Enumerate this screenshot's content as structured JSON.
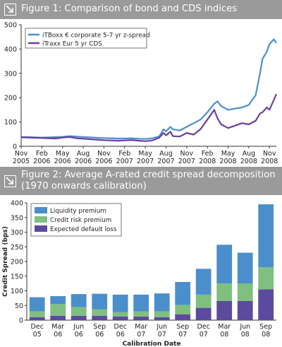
{
  "figure1": {
    "title": "Figure 1: Comparison of bond and CDS indices",
    "chart_data": {
      "type": "line",
      "title": "Figure 1: Comparison of bond and CDS indices",
      "xlabel": "",
      "ylabel": "",
      "ylim": [
        0,
        500
      ],
      "y_ticks": [
        "0",
        "100",
        "200",
        "300",
        "400",
        "500"
      ],
      "x_ticks": [
        {
          "line1": "Nov",
          "line2": "2005"
        },
        {
          "line1": "Feb",
          "line2": "2006"
        },
        {
          "line1": "May",
          "line2": "2006"
        },
        {
          "line1": "Aug",
          "line2": "2006"
        },
        {
          "line1": "Nov",
          "line2": "2006"
        },
        {
          "line1": "Feb",
          "line2": "2007"
        },
        {
          "line1": "May",
          "line2": "2007"
        },
        {
          "line1": "Aug",
          "line2": "2007"
        },
        {
          "line1": "Nov",
          "line2": "2007"
        },
        {
          "line1": "Feb",
          "line2": "2008"
        },
        {
          "line1": "May",
          "line2": "2008"
        },
        {
          "line1": "Aug",
          "line2": "2008"
        },
        {
          "line1": "Nov",
          "line2": "2008"
        }
      ],
      "legend_position": "top-left",
      "series": [
        {
          "name": "iTBoxx € corporate 5-7 yr z-spread",
          "color": "#4b8fc9",
          "points": [
            [
              "2005-11",
              38
            ],
            [
              "2005-12",
              38
            ],
            [
              "2006-01",
              37
            ],
            [
              "2006-02",
              36
            ],
            [
              "2006-03",
              37
            ],
            [
              "2006-04",
              38
            ],
            [
              "2006-05",
              39
            ],
            [
              "2006-06",
              42
            ],
            [
              "2006-07",
              40
            ],
            [
              "2006-08",
              38
            ],
            [
              "2006-09",
              37
            ],
            [
              "2006-10",
              35
            ],
            [
              "2006-11",
              34
            ],
            [
              "2006-12",
              33
            ],
            [
              "2007-01",
              32
            ],
            [
              "2007-02",
              32
            ],
            [
              "2007-03",
              33
            ],
            [
              "2007-04",
              31
            ],
            [
              "2007-05",
              30
            ],
            [
              "2007-06",
              33
            ],
            [
              "2007-07",
              40
            ],
            [
              "2007-07-20",
              70
            ],
            [
              "2007-08",
              62
            ],
            [
              "2007-08-20",
              80
            ],
            [
              "2007-09",
              70
            ],
            [
              "2007-10",
              65
            ],
            [
              "2007-11",
              80
            ],
            [
              "2007-12",
              95
            ],
            [
              "2008-01",
              110
            ],
            [
              "2008-02",
              140
            ],
            [
              "2008-03",
              175
            ],
            [
              "2008-03-15",
              185
            ],
            [
              "2008-04",
              165
            ],
            [
              "2008-05",
              150
            ],
            [
              "2008-06",
              155
            ],
            [
              "2008-07",
              160
            ],
            [
              "2008-08",
              170
            ],
            [
              "2008-09",
              210
            ],
            [
              "2008-09-20",
              300
            ],
            [
              "2008-10",
              360
            ],
            [
              "2008-10-20",
              390
            ],
            [
              "2008-11",
              420
            ],
            [
              "2008-11-20",
              440
            ],
            [
              "2008-12",
              425
            ]
          ]
        },
        {
          "name": "iTraxx Eur 5 yr CDS",
          "color": "#6a3f9e",
          "points": [
            [
              "2005-11",
              37
            ],
            [
              "2005-12",
              36
            ],
            [
              "2006-01",
              35
            ],
            [
              "2006-02",
              34
            ],
            [
              "2006-03",
              33
            ],
            [
              "2006-04",
              32
            ],
            [
              "2006-05",
              36
            ],
            [
              "2006-06",
              38
            ],
            [
              "2006-07",
              33
            ],
            [
              "2006-08",
              31
            ],
            [
              "2006-09",
              29
            ],
            [
              "2006-10",
              27
            ],
            [
              "2006-11",
              25
            ],
            [
              "2006-12",
              24
            ],
            [
              "2007-01",
              23
            ],
            [
              "2007-02",
              24
            ],
            [
              "2007-03",
              26
            ],
            [
              "2007-04",
              23
            ],
            [
              "2007-05",
              21
            ],
            [
              "2007-06",
              24
            ],
            [
              "2007-07",
              35
            ],
            [
              "2007-07-20",
              55
            ],
            [
              "2007-08",
              45
            ],
            [
              "2007-08-20",
              60
            ],
            [
              "2007-09",
              42
            ],
            [
              "2007-10",
              40
            ],
            [
              "2007-11",
              55
            ],
            [
              "2007-12",
              48
            ],
            [
              "2008-01",
              70
            ],
            [
              "2008-02",
              110
            ],
            [
              "2008-03",
              150
            ],
            [
              "2008-03-15",
              115
            ],
            [
              "2008-04",
              90
            ],
            [
              "2008-05",
              75
            ],
            [
              "2008-06",
              85
            ],
            [
              "2008-07",
              95
            ],
            [
              "2008-08",
              90
            ],
            [
              "2008-09",
              105
            ],
            [
              "2008-09-20",
              135
            ],
            [
              "2008-10",
              140
            ],
            [
              "2008-10-20",
              160
            ],
            [
              "2008-11",
              150
            ],
            [
              "2008-11-20",
              190
            ],
            [
              "2008-12",
              215
            ]
          ]
        }
      ]
    }
  },
  "figure2": {
    "title": "Figure 2: Average A-rated credit spread decomposition\n(1970 onwards calibration)",
    "chart_data": {
      "type": "bar",
      "stacked": true,
      "title": "Figure 2: Average A-rated credit spread decomposition (1970 onwards calibration)",
      "xlabel": "Calibration Date",
      "ylabel": "Credit Spread (bps)",
      "ylim": [
        0,
        400
      ],
      "y_ticks": [
        "0",
        "50",
        "100",
        "150",
        "200",
        "250",
        "300",
        "350",
        "400"
      ],
      "legend_position": "top-left",
      "categories": [
        {
          "line1": "Dec",
          "line2": "05"
        },
        {
          "line1": "Mar",
          "line2": "06"
        },
        {
          "line1": "Jun",
          "line2": "06"
        },
        {
          "line1": "Sep",
          "line2": "06"
        },
        {
          "line1": "Dec",
          "line2": "06"
        },
        {
          "line1": "Mar",
          "line2": "07"
        },
        {
          "line1": "Jun",
          "line2": "07"
        },
        {
          "line1": "Sep",
          "line2": "07"
        },
        {
          "line1": "Dec",
          "line2": "07"
        },
        {
          "line1": "Mar",
          "line2": "08"
        },
        {
          "line1": "Jun",
          "line2": "08"
        },
        {
          "line1": "Sep",
          "line2": "08"
        }
      ],
      "series": [
        {
          "name": "Expected default loss",
          "color": "#5b4a9e",
          "values": [
            10,
            15,
            15,
            15,
            12,
            12,
            10,
            20,
            42,
            65,
            65,
            105
          ]
        },
        {
          "name": "Credit risk premium",
          "color": "#7fbf7f",
          "values": [
            20,
            40,
            30,
            22,
            15,
            18,
            20,
            32,
            45,
            60,
            60,
            75
          ]
        },
        {
          "name": "Liquidity premium",
          "color": "#4a8fcb",
          "values": [
            48,
            27,
            44,
            53,
            60,
            57,
            61,
            78,
            88,
            132,
            105,
            215
          ]
        }
      ],
      "legend_order": [
        "Liquidity premium",
        "Credit risk premium",
        "Expected default loss"
      ]
    }
  }
}
